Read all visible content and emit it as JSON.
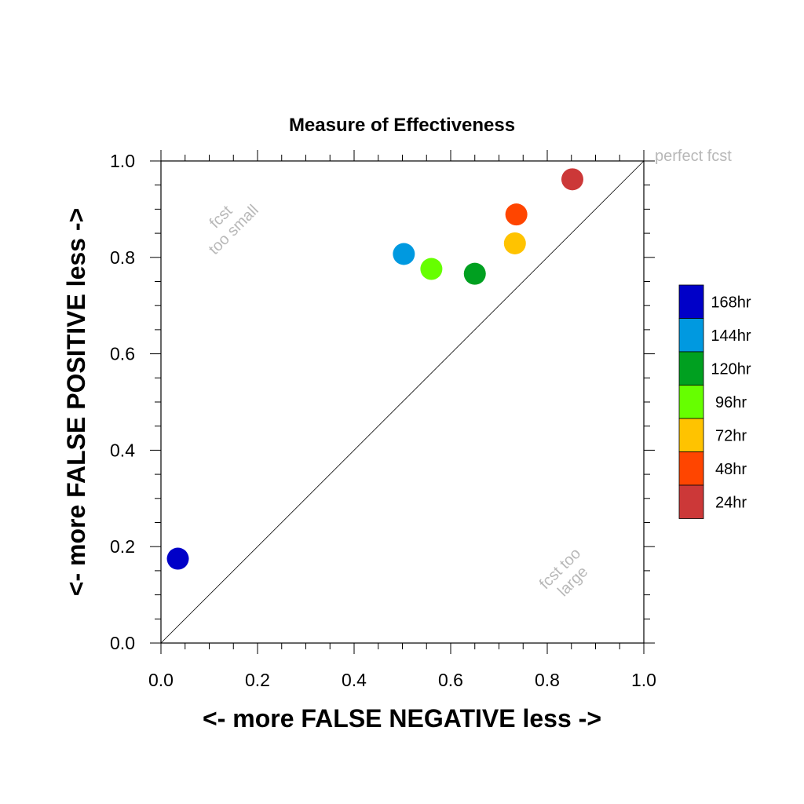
{
  "chart_data": {
    "type": "scatter",
    "title": "Measure of Effectiveness",
    "xlabel": "<- more   FALSE NEGATIVE   less ->",
    "ylabel": "<- more   FALSE POSITIVE   less ->",
    "xlim": [
      0.0,
      1.0
    ],
    "ylim": [
      0.0,
      1.0
    ],
    "x_ticks": [
      "0.0",
      "0.2",
      "0.4",
      "0.6",
      "0.8",
      "1.0"
    ],
    "y_ticks": [
      "0.0",
      "0.2",
      "0.4",
      "0.6",
      "0.8",
      "1.0"
    ],
    "grid": false,
    "reference_line": {
      "from": [
        0,
        0
      ],
      "to": [
        1,
        1
      ]
    },
    "annotations": {
      "perfect": "perfect fcst",
      "small_line1": "fcst",
      "small_line2": "too small",
      "large_line1": "fcst too",
      "large_line2": "large"
    },
    "legend_position": "right",
    "series": [
      {
        "name": "168hr",
        "color": "#0000c8",
        "x": 0.035,
        "y": 0.175
      },
      {
        "name": "144hr",
        "color": "#0099e0",
        "x": 0.503,
        "y": 0.807
      },
      {
        "name": "120hr",
        "color": "#00a020",
        "x": 0.65,
        "y": 0.766
      },
      {
        "name": "96hr",
        "color": "#66ff00",
        "x": 0.56,
        "y": 0.776
      },
      {
        "name": "72hr",
        "color": "#ffc300",
        "x": 0.733,
        "y": 0.829
      },
      {
        "name": "48hr",
        "color": "#ff4500",
        "x": 0.736,
        "y": 0.889
      },
      {
        "name": "24hr",
        "color": "#cc3838",
        "x": 0.852,
        "y": 0.962
      }
    ]
  }
}
